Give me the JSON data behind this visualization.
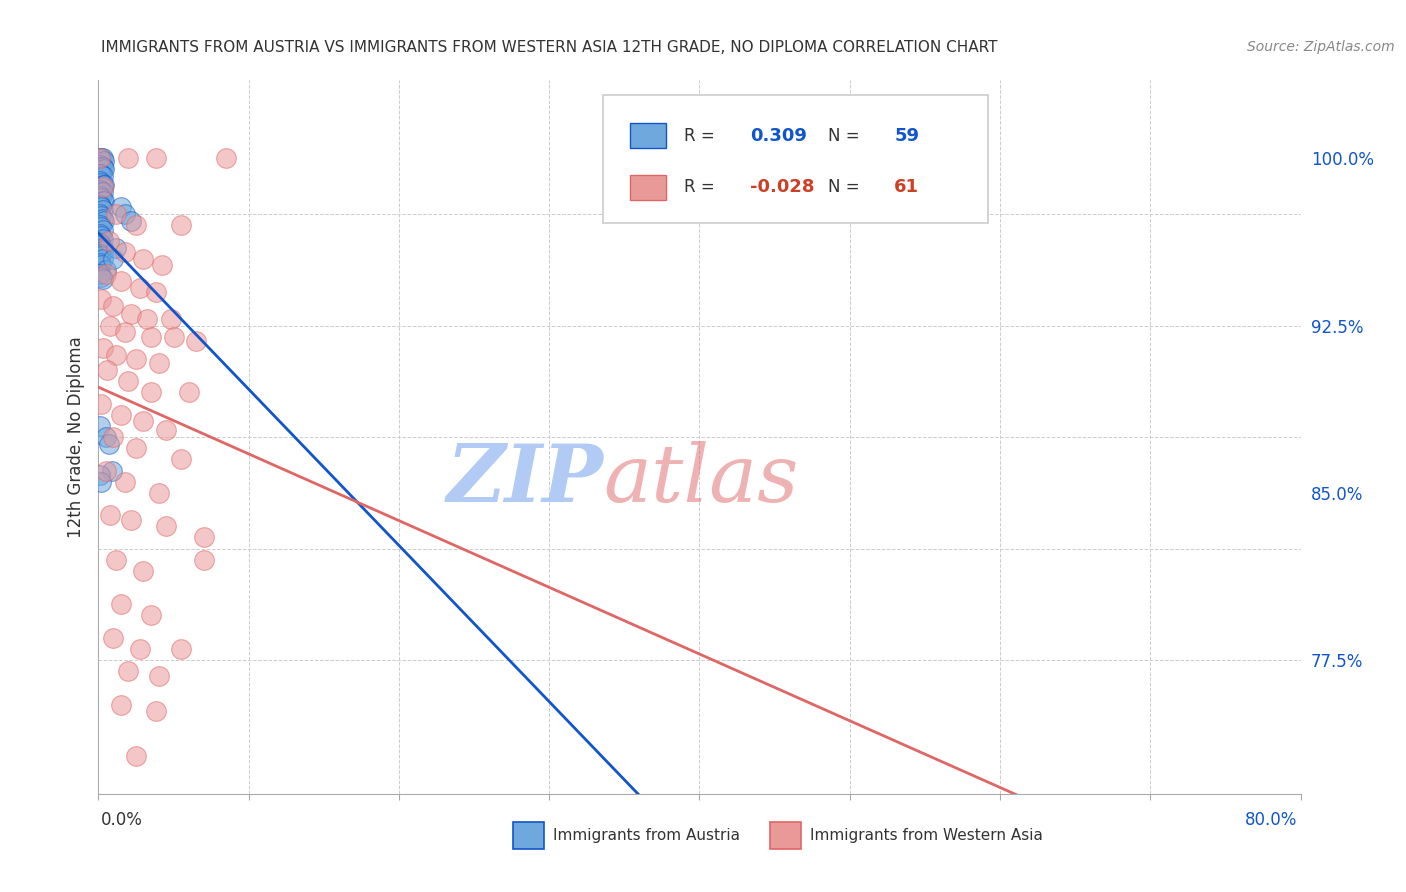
{
  "title": "IMMIGRANTS FROM AUSTRIA VS IMMIGRANTS FROM WESTERN ASIA 12TH GRADE, NO DIPLOMA CORRELATION CHART",
  "source": "Source: ZipAtlas.com",
  "ylabel": "12th Grade, No Diploma",
  "xlim": [
    0.0,
    0.8
  ],
  "ylim": [
    0.715,
    1.035
  ],
  "blue_color": "#6fa8dc",
  "pink_color": "#ea9999",
  "blue_line_color": "#1155cc",
  "pink_line_color": "#e06666",
  "grid_color": "#cccccc",
  "watermark": "ZIPatlas",
  "watermark_color_zip": "#a4c2f4",
  "watermark_color_atlas": "#e06666",
  "blue_R": "0.309",
  "blue_N": "59",
  "pink_R": "-0.028",
  "pink_N": "61",
  "ytick_positions": [
    0.775,
    0.825,
    0.875,
    0.925,
    0.975
  ],
  "ytick_labels": [
    "77.5%",
    "",
    "",
    "92.5%",
    ""
  ],
  "ytick_labels_shown": {
    "0.775": "77.5%",
    "0.85": "85.0%",
    "0.925": "92.5%",
    "1.0": "100.0%"
  },
  "blue_dots": [
    [
      0.001,
      1.0
    ],
    [
      0.002,
      1.0
    ],
    [
      0.003,
      1.0
    ],
    [
      0.004,
      0.999
    ],
    [
      0.001,
      0.997
    ],
    [
      0.002,
      0.996
    ],
    [
      0.003,
      0.996
    ],
    [
      0.004,
      0.995
    ],
    [
      0.001,
      0.993
    ],
    [
      0.002,
      0.993
    ],
    [
      0.003,
      0.992
    ],
    [
      0.001,
      0.99
    ],
    [
      0.002,
      0.989
    ],
    [
      0.003,
      0.988
    ],
    [
      0.004,
      0.988
    ],
    [
      0.001,
      0.986
    ],
    [
      0.002,
      0.985
    ],
    [
      0.003,
      0.985
    ],
    [
      0.001,
      0.983
    ],
    [
      0.002,
      0.982
    ],
    [
      0.003,
      0.981
    ],
    [
      0.004,
      0.981
    ],
    [
      0.001,
      0.979
    ],
    [
      0.002,
      0.978
    ],
    [
      0.003,
      0.977
    ],
    [
      0.001,
      0.975
    ],
    [
      0.002,
      0.974
    ],
    [
      0.003,
      0.973
    ],
    [
      0.004,
      0.972
    ],
    [
      0.001,
      0.97
    ],
    [
      0.002,
      0.969
    ],
    [
      0.003,
      0.968
    ],
    [
      0.001,
      0.966
    ],
    [
      0.002,
      0.965
    ],
    [
      0.003,
      0.964
    ],
    [
      0.001,
      0.962
    ],
    [
      0.002,
      0.961
    ],
    [
      0.003,
      0.96
    ],
    [
      0.004,
      0.959
    ],
    [
      0.001,
      0.957
    ],
    [
      0.002,
      0.956
    ],
    [
      0.003,
      0.955
    ],
    [
      0.001,
      0.953
    ],
    [
      0.002,
      0.952
    ],
    [
      0.005,
      0.95
    ],
    [
      0.001,
      0.948
    ],
    [
      0.002,
      0.947
    ],
    [
      0.003,
      0.946
    ],
    [
      0.001,
      0.88
    ],
    [
      0.005,
      0.875
    ],
    [
      0.015,
      0.978
    ],
    [
      0.018,
      0.975
    ],
    [
      0.022,
      0.972
    ],
    [
      0.012,
      0.96
    ],
    [
      0.01,
      0.955
    ],
    [
      0.007,
      0.872
    ],
    [
      0.009,
      0.86
    ],
    [
      0.001,
      0.858
    ],
    [
      0.002,
      0.855
    ]
  ],
  "pink_dots": [
    [
      0.001,
      1.0
    ],
    [
      0.02,
      1.0
    ],
    [
      0.038,
      1.0
    ],
    [
      0.085,
      1.0
    ],
    [
      0.003,
      0.987
    ],
    [
      0.012,
      0.975
    ],
    [
      0.025,
      0.97
    ],
    [
      0.055,
      0.97
    ],
    [
      0.007,
      0.963
    ],
    [
      0.018,
      0.958
    ],
    [
      0.03,
      0.955
    ],
    [
      0.042,
      0.952
    ],
    [
      0.005,
      0.948
    ],
    [
      0.015,
      0.945
    ],
    [
      0.028,
      0.942
    ],
    [
      0.038,
      0.94
    ],
    [
      0.002,
      0.937
    ],
    [
      0.01,
      0.934
    ],
    [
      0.022,
      0.93
    ],
    [
      0.032,
      0.928
    ],
    [
      0.048,
      0.928
    ],
    [
      0.008,
      0.925
    ],
    [
      0.018,
      0.922
    ],
    [
      0.035,
      0.92
    ],
    [
      0.05,
      0.92
    ],
    [
      0.065,
      0.918
    ],
    [
      0.003,
      0.915
    ],
    [
      0.012,
      0.912
    ],
    [
      0.025,
      0.91
    ],
    [
      0.04,
      0.908
    ],
    [
      0.006,
      0.905
    ],
    [
      0.02,
      0.9
    ],
    [
      0.035,
      0.895
    ],
    [
      0.06,
      0.895
    ],
    [
      0.002,
      0.89
    ],
    [
      0.015,
      0.885
    ],
    [
      0.03,
      0.882
    ],
    [
      0.045,
      0.878
    ],
    [
      0.01,
      0.875
    ],
    [
      0.025,
      0.87
    ],
    [
      0.055,
      0.865
    ],
    [
      0.005,
      0.86
    ],
    [
      0.018,
      0.855
    ],
    [
      0.04,
      0.85
    ],
    [
      0.008,
      0.84
    ],
    [
      0.022,
      0.838
    ],
    [
      0.045,
      0.835
    ],
    [
      0.07,
      0.83
    ],
    [
      0.012,
      0.82
    ],
    [
      0.03,
      0.815
    ],
    [
      0.015,
      0.8
    ],
    [
      0.035,
      0.795
    ],
    [
      0.01,
      0.785
    ],
    [
      0.028,
      0.78
    ],
    [
      0.055,
      0.78
    ],
    [
      0.02,
      0.77
    ],
    [
      0.04,
      0.768
    ],
    [
      0.015,
      0.755
    ],
    [
      0.038,
      0.752
    ],
    [
      0.025,
      0.732
    ],
    [
      0.07,
      0.82
    ]
  ]
}
